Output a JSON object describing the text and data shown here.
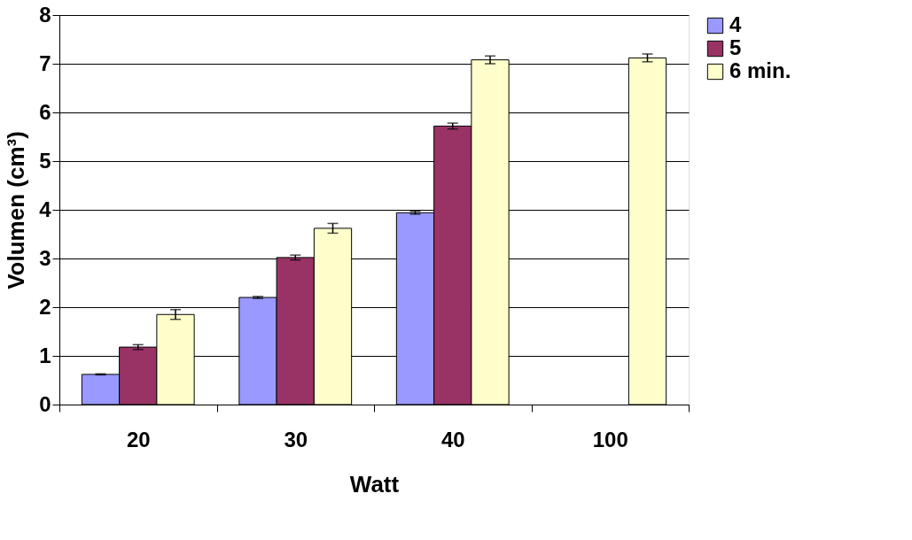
{
  "chart_data": {
    "type": "bar",
    "xlabel": "Watt",
    "ylabel": "Volumen (cm³)",
    "categories": [
      "20",
      "30",
      "40",
      "100"
    ],
    "series": [
      {
        "name": "4",
        "color": "#9999ff",
        "values": [
          0.62,
          2.2,
          3.94,
          null
        ],
        "errors": [
          0.01,
          0.02,
          0.03,
          null
        ]
      },
      {
        "name": "5",
        "color": "#993366",
        "values": [
          1.18,
          3.02,
          5.72,
          null
        ],
        "errors": [
          0.05,
          0.05,
          0.06,
          null
        ]
      },
      {
        "name": "6 min.",
        "color": "#ffffcc",
        "values": [
          1.85,
          3.62,
          7.08,
          7.12
        ],
        "errors": [
          0.1,
          0.1,
          0.08,
          0.08
        ]
      }
    ],
    "ylim": [
      0,
      8
    ],
    "yticks": [
      0,
      1,
      2,
      3,
      4,
      5,
      6,
      7,
      8
    ],
    "grid": "y",
    "legend": "right"
  }
}
